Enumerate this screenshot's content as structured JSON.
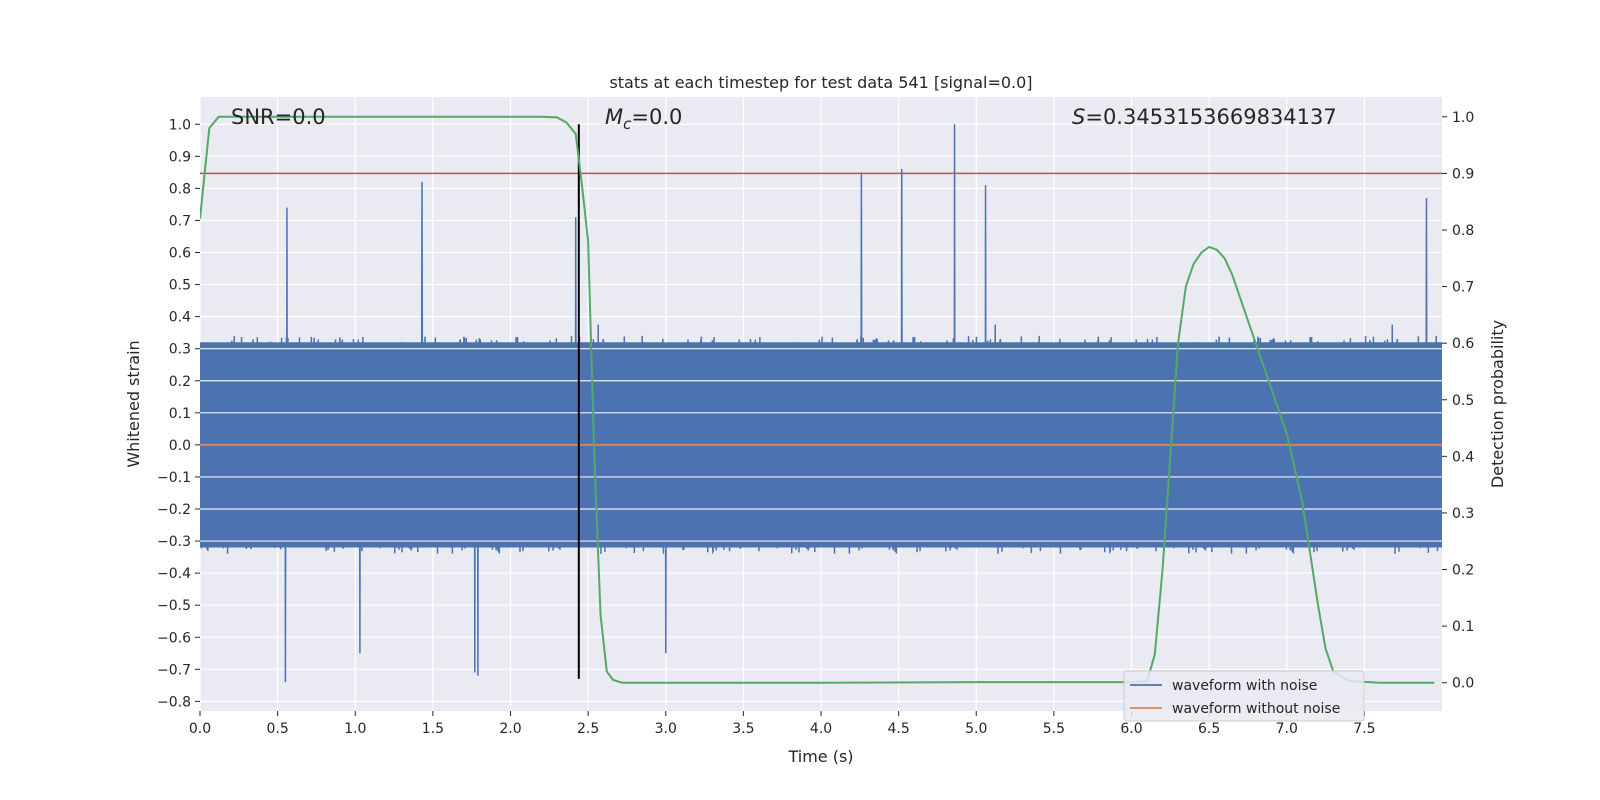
{
  "chart_data": {
    "type": "line",
    "title": "stats at each timestep for test data 541 [signal=0.0]",
    "xlabel": "Time (s)",
    "ylabel": "Whitened strain",
    "ylabel_right": "Detection probability",
    "xlim": [
      0.0,
      8.0
    ],
    "ylim": [
      -0.83,
      1.085
    ],
    "ylim_right": [
      -0.05,
      1.035
    ],
    "x_ticks": [
      0.0,
      0.5,
      1.0,
      1.5,
      2.0,
      2.5,
      3.0,
      3.5,
      4.0,
      4.5,
      5.0,
      5.5,
      6.0,
      6.5,
      7.0,
      7.5
    ],
    "x_tick_labels": [
      "0.0",
      "0.5",
      "1.0",
      "1.5",
      "2.0",
      "2.5",
      "3.0",
      "3.5",
      "4.0",
      "4.5",
      "5.0",
      "5.5",
      "6.0",
      "6.5",
      "7.0",
      "7.5"
    ],
    "y_ticks": [
      1.0,
      0.9,
      0.8,
      0.7,
      0.6,
      0.5,
      0.4,
      0.3,
      0.2,
      0.1,
      0.0,
      -0.1,
      -0.2,
      -0.3,
      -0.4,
      -0.5,
      -0.6,
      -0.7,
      -0.8
    ],
    "y_tick_labels": [
      "1.0",
      "0.9",
      "0.8",
      "0.7",
      "0.6",
      "0.5",
      "0.4",
      "0.3",
      "0.2",
      "0.1",
      "0.0",
      "−0.1",
      "−0.2",
      "−0.3",
      "−0.4",
      "−0.5",
      "−0.6",
      "−0.7",
      "−0.8"
    ],
    "y_ticks_right": [
      1.0,
      0.9,
      0.8,
      0.7,
      0.6,
      0.5,
      0.4,
      0.3,
      0.2,
      0.1,
      0.0
    ],
    "y_tick_labels_right": [
      "1.0",
      "0.9",
      "0.8",
      "0.7",
      "0.6",
      "0.5",
      "0.4",
      "0.3",
      "0.2",
      "0.1",
      "0.0"
    ],
    "grid": true,
    "annotations": {
      "snr": "SNR=0.0",
      "mc_symbol": "M",
      "mc_sub": "c",
      "mc_value": "=0.0",
      "s_symbol": "S",
      "s_value": "=0.3453153669834137"
    },
    "series": [
      {
        "name": "waveform with noise",
        "color": "#4c72b0",
        "axis": "left",
        "description_stats": {
          "core_amplitude": 0.32,
          "min": -0.74,
          "max": 1.0
        },
        "notable_peaks": [
          {
            "x": 0.56,
            "y": 0.74
          },
          {
            "x": 1.43,
            "y": 0.82
          },
          {
            "x": 4.26,
            "y": 0.85
          },
          {
            "x": 4.52,
            "y": 0.86
          },
          {
            "x": 4.86,
            "y": 1.0
          },
          {
            "x": 5.06,
            "y": 0.81
          },
          {
            "x": 2.42,
            "y": 0.71
          },
          {
            "x": 7.9,
            "y": 0.77
          },
          {
            "x": 0.55,
            "y": -0.74
          },
          {
            "x": 1.77,
            "y": -0.71
          },
          {
            "x": 1.79,
            "y": -0.72
          },
          {
            "x": 3.0,
            "y": -0.65
          },
          {
            "x": 1.03,
            "y": -0.65
          }
        ]
      },
      {
        "name": "waveform without noise",
        "color": "#dd8452",
        "axis": "left",
        "x": [
          0.0,
          8.0
        ],
        "values": [
          0.0,
          0.0
        ]
      },
      {
        "name": "detection probability",
        "color": "#55a868",
        "axis": "right",
        "x": [
          0.0,
          0.06,
          0.12,
          0.2,
          0.5,
          1.0,
          1.5,
          2.0,
          2.2,
          2.3,
          2.36,
          2.42,
          2.46,
          2.5,
          2.54,
          2.58,
          2.62,
          2.66,
          2.72,
          3.0,
          4.0,
          5.0,
          6.0,
          6.1,
          6.15,
          6.2,
          6.25,
          6.3,
          6.35,
          6.4,
          6.45,
          6.5,
          6.55,
          6.6,
          6.65,
          6.7,
          6.8,
          6.9,
          7.0,
          7.1,
          7.2,
          7.25,
          7.3,
          7.4,
          7.6,
          7.95
        ],
        "values": [
          0.82,
          0.98,
          1.0,
          1.0,
          1.0,
          1.0,
          1.0,
          1.0,
          1.0,
          0.999,
          0.99,
          0.97,
          0.88,
          0.78,
          0.4,
          0.12,
          0.02,
          0.005,
          0.0,
          0.0,
          0.0,
          0.001,
          0.001,
          0.002,
          0.05,
          0.2,
          0.4,
          0.6,
          0.7,
          0.74,
          0.76,
          0.77,
          0.765,
          0.75,
          0.72,
          0.68,
          0.6,
          0.52,
          0.44,
          0.32,
          0.14,
          0.06,
          0.02,
          0.003,
          0.0,
          0.0
        ]
      }
    ],
    "hlines": [
      {
        "name": "threshold",
        "color": "#c44e52",
        "axis": "right",
        "y": 0.9
      }
    ],
    "vlines": [
      {
        "name": "event-marker",
        "color": "#000000",
        "x": 2.44,
        "y_range": [
          -0.73,
          1.0
        ]
      }
    ],
    "legend": {
      "position": "lower right",
      "entries": [
        {
          "label": "waveform with noise",
          "color": "#4c72b0"
        },
        {
          "label": "waveform without noise",
          "color": "#dd8452"
        }
      ]
    }
  }
}
